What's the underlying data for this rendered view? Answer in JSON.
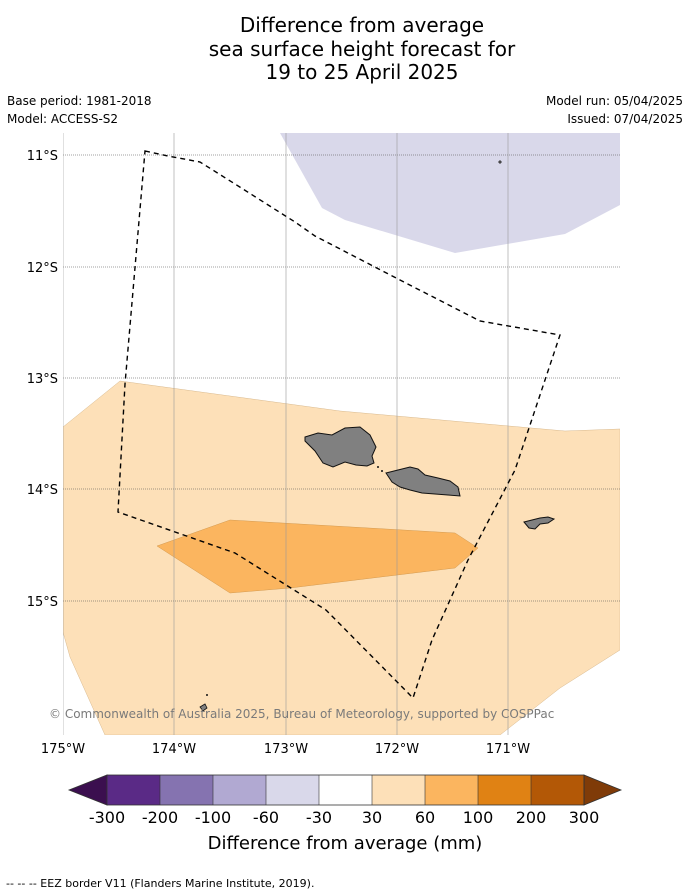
{
  "header": {
    "title_lines": [
      "Difference from average",
      "sea surface height forecast for",
      "19 to 25 April 2025"
    ],
    "base_period": "Base period: 1981-2018",
    "model": "Model: ACCESS-S2",
    "model_run": "Model run: 05/04/2025",
    "issued": "Issued: 07/04/2025"
  },
  "map": {
    "lat_labels": [
      "11°S",
      "12°S",
      "13°S",
      "14°S",
      "15°S"
    ],
    "lon_labels": [
      "175°W",
      "174°W",
      "173°W",
      "172°W",
      "171°W"
    ],
    "lat_range": [
      -16.2,
      -10.8
    ],
    "lon_range": [
      -175.0,
      -170.0
    ],
    "copyright": "© Commonwealth of Australia 2025, Bureau of Meteorology, supported by COSPPac",
    "colors": {
      "neg_30_60": "#d9d8ea",
      "pos_30_60": "#fde0b8",
      "pos_60_100": "#fbb55f",
      "land": "#808080",
      "eez": "#000000"
    }
  },
  "colorbar": {
    "ticks": [
      "-300",
      "-200",
      "-100",
      "-60",
      "-30",
      "30",
      "60",
      "100",
      "200",
      "300"
    ],
    "colors": [
      "#3b0f4f",
      "#5a2a86",
      "#8573b0",
      "#b1a9d2",
      "#d9d8ea",
      "#ffffff",
      "#fde0b8",
      "#fbb55f",
      "#e08214",
      "#b35806",
      "#7f3b08"
    ],
    "label": "Difference from average (mm)"
  },
  "legend": {
    "eez_note": "-- -- -- EEZ border V11 (Flanders Marine Institute, 2019)."
  }
}
